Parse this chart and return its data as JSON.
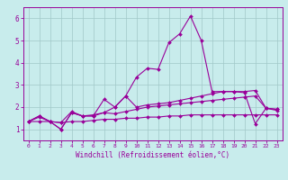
{
  "xlabel": "Windchill (Refroidissement éolien,°C)",
  "background_color": "#c8ecec",
  "grid_color": "#a0c8c8",
  "line_color": "#990099",
  "xlim": [
    -0.5,
    23.5
  ],
  "ylim": [
    0.5,
    6.5
  ],
  "xticks": [
    0,
    1,
    2,
    3,
    4,
    5,
    6,
    7,
    8,
    9,
    10,
    11,
    12,
    13,
    14,
    15,
    16,
    17,
    18,
    19,
    20,
    21,
    22,
    23
  ],
  "yticks": [
    1,
    2,
    3,
    4,
    5,
    6
  ],
  "line1_x": [
    0,
    1,
    2,
    3,
    4,
    5,
    6,
    7,
    8,
    9,
    10,
    11,
    12,
    13,
    14,
    15,
    16,
    17,
    18,
    19,
    20,
    21,
    22,
    23
  ],
  "line1_y": [
    1.35,
    1.6,
    1.35,
    1.0,
    1.75,
    1.6,
    1.65,
    1.75,
    2.0,
    2.5,
    2.0,
    2.1,
    2.15,
    2.2,
    2.3,
    2.4,
    2.5,
    2.6,
    2.7,
    2.7,
    2.7,
    2.75,
    1.95,
    1.9
  ],
  "line2_x": [
    0,
    1,
    2,
    3,
    4,
    5,
    6,
    7,
    8,
    9,
    10,
    11,
    12,
    13,
    14,
    15,
    16,
    17,
    18,
    19,
    20,
    21,
    22,
    23
  ],
  "line2_y": [
    1.35,
    1.6,
    1.35,
    1.3,
    1.8,
    1.6,
    1.6,
    2.35,
    2.0,
    2.5,
    3.35,
    3.75,
    3.7,
    4.9,
    5.3,
    6.1,
    5.0,
    2.7,
    2.7,
    2.7,
    2.65,
    1.25,
    1.95,
    1.9
  ],
  "line3_x": [
    0,
    1,
    2,
    3,
    4,
    5,
    6,
    7,
    8,
    9,
    10,
    11,
    12,
    13,
    14,
    15,
    16,
    17,
    18,
    19,
    20,
    21,
    22,
    23
  ],
  "line3_y": [
    1.35,
    1.55,
    1.35,
    1.0,
    1.75,
    1.6,
    1.6,
    1.75,
    1.7,
    1.8,
    1.9,
    2.0,
    2.05,
    2.1,
    2.15,
    2.2,
    2.25,
    2.3,
    2.35,
    2.4,
    2.45,
    2.5,
    1.95,
    1.85
  ],
  "line4_x": [
    0,
    1,
    2,
    3,
    4,
    5,
    6,
    7,
    8,
    9,
    10,
    11,
    12,
    13,
    14,
    15,
    16,
    17,
    18,
    19,
    20,
    21,
    22,
    23
  ],
  "line4_y": [
    1.35,
    1.35,
    1.35,
    1.3,
    1.35,
    1.35,
    1.4,
    1.45,
    1.45,
    1.5,
    1.5,
    1.55,
    1.55,
    1.6,
    1.6,
    1.65,
    1.65,
    1.65,
    1.65,
    1.65,
    1.65,
    1.65,
    1.65,
    1.65
  ]
}
